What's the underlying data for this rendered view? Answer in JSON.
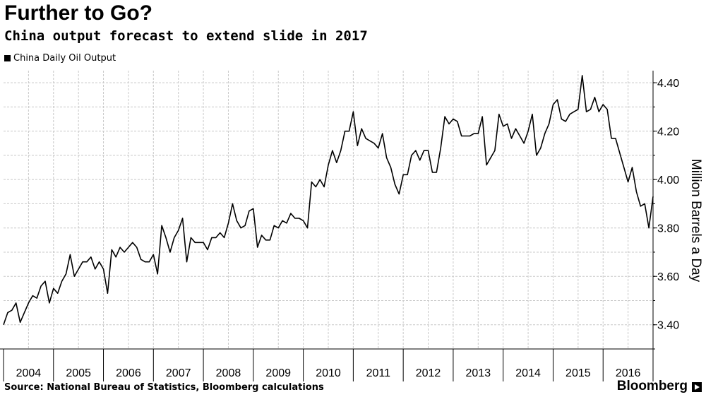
{
  "header": {
    "title": "Further to Go?",
    "subtitle": "China output forecast to extend slide in 2017"
  },
  "legend": {
    "label": "China Daily Oil Output"
  },
  "footer": {
    "source": "Source: National Bureau of Statistics, Bloomberg calculations",
    "brand": "Bloomberg"
  },
  "chart_data": {
    "type": "line",
    "title": "Further to Go?",
    "subtitle": "China output forecast to extend slide in 2017",
    "ylabel": "Million Barrels a Day",
    "xlabel": "",
    "ylim": [
      3.3,
      4.45
    ],
    "x_ticks": [
      "2004",
      "2005",
      "2006",
      "2007",
      "2008",
      "2009",
      "2010",
      "2011",
      "2012",
      "2013",
      "2014",
      "2015",
      "2016"
    ],
    "y_ticks": [
      "3.40",
      "3.60",
      "3.80",
      "4.00",
      "4.20",
      "4.40"
    ],
    "y_tick_values": [
      3.4,
      3.6,
      3.8,
      4.0,
      4.2,
      4.4
    ],
    "x_range": [
      "Jan 2004",
      "Jan 2017"
    ],
    "grid": true,
    "legend_position": "top-left",
    "series": [
      {
        "name": "China Daily Oil Output",
        "start": "Jan 2004",
        "frequency": "monthly",
        "values": [
          3.4,
          3.45,
          3.46,
          3.49,
          3.41,
          3.45,
          3.49,
          3.52,
          3.51,
          3.56,
          3.58,
          3.49,
          3.55,
          3.53,
          3.58,
          3.61,
          3.69,
          3.6,
          3.63,
          3.66,
          3.66,
          3.68,
          3.63,
          3.66,
          3.63,
          3.53,
          3.71,
          3.68,
          3.72,
          3.7,
          3.72,
          3.74,
          3.72,
          3.67,
          3.66,
          3.66,
          3.69,
          3.61,
          3.81,
          3.76,
          3.7,
          3.76,
          3.79,
          3.84,
          3.66,
          3.76,
          3.74,
          3.74,
          3.74,
          3.71,
          3.76,
          3.76,
          3.78,
          3.76,
          3.82,
          3.9,
          3.83,
          3.8,
          3.81,
          3.87,
          3.88,
          3.72,
          3.77,
          3.75,
          3.75,
          3.81,
          3.8,
          3.83,
          3.82,
          3.86,
          3.84,
          3.84,
          3.83,
          3.8,
          3.99,
          3.97,
          4.0,
          3.97,
          4.06,
          4.12,
          4.07,
          4.12,
          4.2,
          4.2,
          4.28,
          4.14,
          4.21,
          4.17,
          4.16,
          4.15,
          4.13,
          4.19,
          4.09,
          4.05,
          3.98,
          3.94,
          4.02,
          4.02,
          4.1,
          4.12,
          4.08,
          4.12,
          4.12,
          4.03,
          4.03,
          4.13,
          4.26,
          4.23,
          4.25,
          4.24,
          4.18,
          4.18,
          4.18,
          4.19,
          4.19,
          4.26,
          4.06,
          4.09,
          4.12,
          4.27,
          4.22,
          4.23,
          4.17,
          4.21,
          4.18,
          4.15,
          4.2,
          4.27,
          4.1,
          4.13,
          4.19,
          4.23,
          4.31,
          4.33,
          4.25,
          4.24,
          4.27,
          4.28,
          4.29,
          4.43,
          4.28,
          4.29,
          4.34,
          4.28,
          4.31,
          4.29,
          4.17,
          4.17,
          4.11,
          4.05,
          3.99,
          4.05,
          3.95,
          3.89,
          3.9,
          3.8,
          3.93
        ]
      }
    ]
  }
}
